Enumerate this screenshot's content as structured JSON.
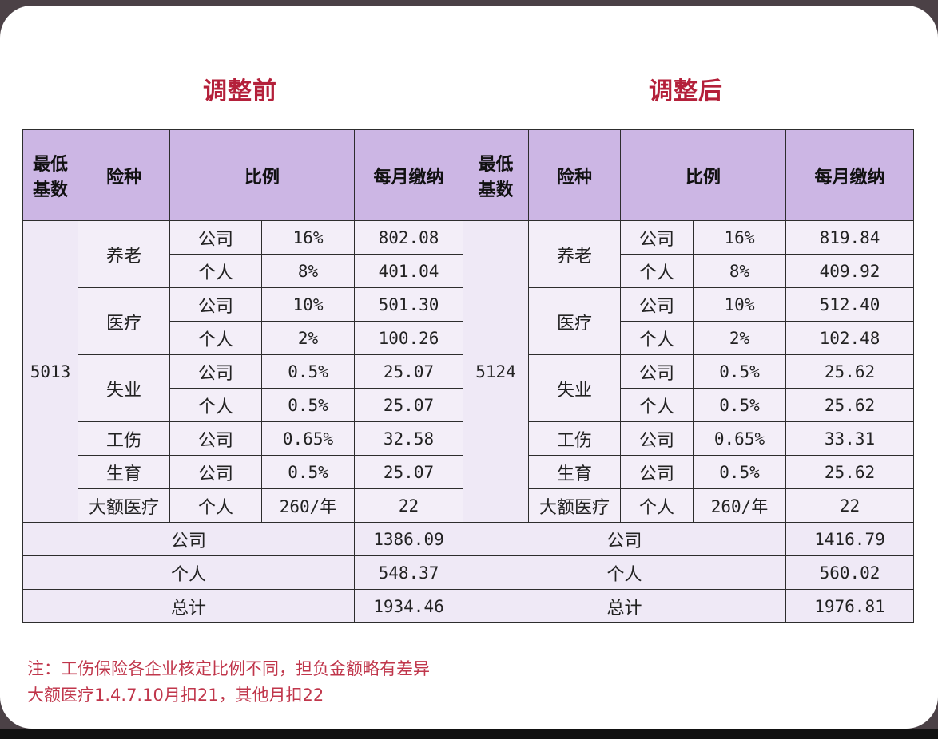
{
  "titles": {
    "before": "调整前",
    "after": "调整后"
  },
  "headers": {
    "base": "最低基数",
    "base_line1": "最低",
    "base_line2": "基数",
    "type": "险种",
    "ratio": "比例",
    "monthly": "每月缴纳"
  },
  "before": {
    "base": "5013",
    "rows": [
      {
        "type": "养老",
        "party": "公司",
        "ratio": "16%",
        "amount": "802.08"
      },
      {
        "type": "",
        "party": "个人",
        "ratio": "8%",
        "amount": "401.04"
      },
      {
        "type": "医疗",
        "party": "公司",
        "ratio": "10%",
        "amount": "501.30"
      },
      {
        "type": "",
        "party": "个人",
        "ratio": "2%",
        "amount": "100.26"
      },
      {
        "type": "失业",
        "party": "公司",
        "ratio": "0.5%",
        "amount": "25.07"
      },
      {
        "type": "",
        "party": "个人",
        "ratio": "0.5%",
        "amount": "25.07"
      },
      {
        "type": "工伤",
        "party": "公司",
        "ratio": "0.65%",
        "amount": "32.58"
      },
      {
        "type": "生育",
        "party": "公司",
        "ratio": "0.5%",
        "amount": "25.07"
      },
      {
        "type": "大额医疗",
        "party": "个人",
        "ratio": "260/年",
        "amount": "22"
      }
    ],
    "totals": [
      {
        "label": "公司",
        "amount": "1386.09"
      },
      {
        "label": "个人",
        "amount": "548.37"
      },
      {
        "label": "总计",
        "amount": "1934.46"
      }
    ]
  },
  "after": {
    "base": "5124",
    "rows": [
      {
        "type": "养老",
        "party": "公司",
        "ratio": "16%",
        "amount": "819.84"
      },
      {
        "type": "",
        "party": "个人",
        "ratio": "8%",
        "amount": "409.92"
      },
      {
        "type": "医疗",
        "party": "公司",
        "ratio": "10%",
        "amount": "512.40"
      },
      {
        "type": "",
        "party": "个人",
        "ratio": "2%",
        "amount": "102.48"
      },
      {
        "type": "失业",
        "party": "公司",
        "ratio": "0.5%",
        "amount": "25.62"
      },
      {
        "type": "",
        "party": "个人",
        "ratio": "0.5%",
        "amount": "25.62"
      },
      {
        "type": "工伤",
        "party": "公司",
        "ratio": "0.65%",
        "amount": "33.31"
      },
      {
        "type": "生育",
        "party": "公司",
        "ratio": "0.5%",
        "amount": "25.62"
      },
      {
        "type": "大额医疗",
        "party": "个人",
        "ratio": "260/年",
        "amount": "22"
      }
    ],
    "totals": [
      {
        "label": "公司",
        "amount": "1416.79"
      },
      {
        "label": "个人",
        "amount": "560.02"
      },
      {
        "label": "总计",
        "amount": "1976.81"
      }
    ]
  },
  "notes": {
    "line1": "注：工伤保险各企业核定比例不同，担负金额略有差异",
    "line2": "大额医疗1.4.7.10月扣21，其他月扣22"
  },
  "colors": {
    "header_bg": "#ccb6e4",
    "title_red": "#b4203a",
    "note_red": "#c0364b",
    "body_bg": "#f3eef8"
  }
}
